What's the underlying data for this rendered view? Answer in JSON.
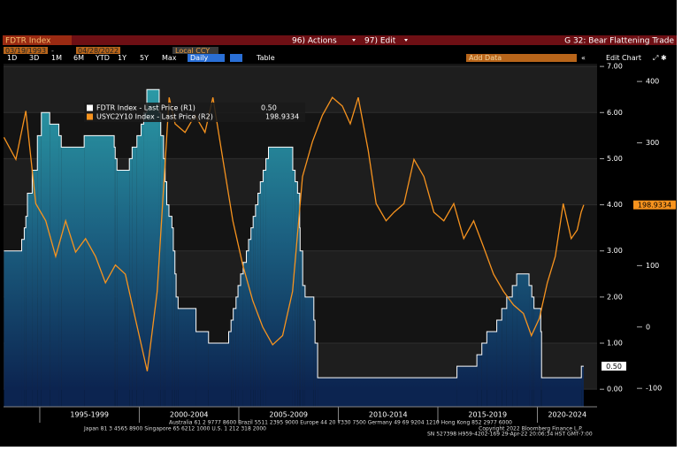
{
  "ui": {
    "security": "FDTR Index",
    "actions": "96) Actions",
    "edit": "97) Edit",
    "chart_name": "G 32: Bear Flattening Trade",
    "start_date": "03/19/1993",
    "end_date": "04/28/2022",
    "currency": "Local CCY",
    "frequency": "Daily",
    "table": "Table",
    "add_data": "Add Data",
    "edit_chart": "Edit Chart",
    "periods": [
      "1D",
      "3D",
      "1M",
      "6M",
      "YTD",
      "1Y",
      "5Y",
      "Max"
    ],
    "footer": [
      "Australia 61 2 9777 8600 Brazil 5511 2395 9000 Europe 44 20 7330 7500 Germany 49 69 9204 1210 Hong Kong 852 2977 6000",
      "Japan 81 3 4565 8900 Singapore 65 6212 1000 U.S. 1 212 318 2000",
      "Copyright 2022 Bloomberg Finance L.P.",
      "SN 527398 H959-4202-169 29-Apr-22 20:06:34 HST GMT-7:00"
    ]
  },
  "chart_data": {
    "type": "line",
    "xlim": [
      1993.18,
      2023.0
    ],
    "xticks": [
      {
        "value": 1995,
        "label": "1995-1999"
      },
      {
        "value": 2000,
        "label": "2000-2004"
      },
      {
        "value": 2005,
        "label": "2005-2009"
      },
      {
        "value": 2010,
        "label": "2010-2014"
      },
      {
        "value": 2015,
        "label": "2015-2019"
      },
      {
        "value": 2020,
        "label": "2020-2024"
      }
    ],
    "ylim": [
      -0.38,
      7.06
    ],
    "yticks": [
      {
        "value": 0,
        "label": "0.00"
      },
      {
        "value": 1,
        "label": "1.00"
      },
      {
        "value": 2,
        "label": "2.00"
      },
      {
        "value": 3,
        "label": "3.00"
      },
      {
        "value": 4,
        "label": "4.00"
      },
      {
        "value": 5,
        "label": "5.00"
      },
      {
        "value": 6,
        "label": "6.00"
      },
      {
        "value": 7,
        "label": "7.00"
      }
    ],
    "y2lim": [
      -130,
      429
    ],
    "y2ticks": [
      -100,
      0,
      100,
      200,
      300,
      400
    ],
    "grid": true,
    "legend": "top-left",
    "series": [
      {
        "name": "FDTR Index - Last Price (R1)",
        "color": "#ffffff",
        "style": "step-area",
        "last_label": "0.50",
        "x": [
          1993.2,
          1994.09,
          1994.22,
          1994.3,
          1994.38,
          1994.62,
          1994.88,
          1995.08,
          1995.5,
          1995.96,
          1996.08,
          1997.23,
          1998.74,
          1998.79,
          1998.88,
          1999.5,
          1999.64,
          1999.88,
          2000.09,
          2000.22,
          2000.38,
          2001.0,
          2001.08,
          2001.22,
          2001.3,
          2001.38,
          2001.49,
          2001.64,
          2001.71,
          2001.79,
          2001.85,
          2001.95,
          2002.85,
          2003.48,
          2004.49,
          2004.61,
          2004.72,
          2004.86,
          2004.96,
          2005.09,
          2005.22,
          2005.38,
          2005.49,
          2005.61,
          2005.72,
          2005.84,
          2005.96,
          2006.08,
          2006.22,
          2006.36,
          2006.49,
          2007.71,
          2007.83,
          2007.95,
          2008.06,
          2008.08,
          2008.21,
          2008.33,
          2008.77,
          2008.83,
          2008.96,
          2015.96,
          2016.96,
          2017.21,
          2017.46,
          2017.96,
          2018.21,
          2018.46,
          2018.74,
          2018.96,
          2019.58,
          2019.72,
          2019.83,
          2020.17,
          2020.21,
          2022.21,
          2022.33
        ],
        "values": [
          3.0,
          3.25,
          3.5,
          3.75,
          4.25,
          4.75,
          5.5,
          6.0,
          5.75,
          5.5,
          5.25,
          5.5,
          5.25,
          5.0,
          4.75,
          5.0,
          5.25,
          5.5,
          5.75,
          6.0,
          6.5,
          6.0,
          5.5,
          5.0,
          4.5,
          4.0,
          3.75,
          3.5,
          3.0,
          2.5,
          2.0,
          1.75,
          1.25,
          1.0,
          1.25,
          1.5,
          1.75,
          2.0,
          2.25,
          2.5,
          2.75,
          3.0,
          3.25,
          3.5,
          3.75,
          4.0,
          4.25,
          4.5,
          4.75,
          5.0,
          5.25,
          4.75,
          4.5,
          4.25,
          3.5,
          3.0,
          2.25,
          2.0,
          1.5,
          1.0,
          0.25,
          0.5,
          0.75,
          1.0,
          1.25,
          1.5,
          1.75,
          2.0,
          2.25,
          2.5,
          2.25,
          2.0,
          1.75,
          1.25,
          0.25,
          0.5,
          0.5
        ]
      },
      {
        "name": "USYC2Y10 Index - Last Price (R2)",
        "color": "#f7931e",
        "axis": "y2",
        "last_label": "198.9334",
        "x": [
          1993.2,
          1993.8,
          1994.3,
          1994.8,
          1995.3,
          1995.8,
          1996.3,
          1996.8,
          1997.3,
          1997.8,
          1998.3,
          1998.8,
          1999.3,
          1999.8,
          2000.4,
          2000.9,
          2001.5,
          2001.8,
          2002.3,
          2002.8,
          2003.3,
          2003.7,
          2004.2,
          2004.7,
          2005.2,
          2005.7,
          2006.2,
          2006.7,
          2007.2,
          2007.7,
          2008.2,
          2008.7,
          2009.2,
          2009.7,
          2010.2,
          2010.6,
          2011.0,
          2011.5,
          2011.9,
          2012.4,
          2012.8,
          2013.3,
          2013.8,
          2014.3,
          2014.8,
          2015.3,
          2015.8,
          2016.3,
          2016.8,
          2017.3,
          2017.8,
          2018.3,
          2018.8,
          2019.3,
          2019.7,
          2020.1,
          2020.5,
          2020.9,
          2021.3,
          2021.7,
          2022.0,
          2022.2,
          2022.33
        ],
        "values": [
          309,
          273,
          352,
          201,
          173,
          115,
          173,
          122,
          144,
          115,
          72,
          101,
          86,
          14,
          -72,
          58,
          374,
          331,
          317,
          345,
          317,
          374,
          273,
          173,
          101,
          43,
          0,
          -29,
          -14,
          58,
          245,
          302,
          345,
          374,
          360,
          331,
          374,
          288,
          201,
          173,
          187,
          201,
          273,
          245,
          187,
          173,
          201,
          144,
          173,
          130,
          86,
          58,
          36,
          22,
          -14,
          14,
          72,
          115,
          201,
          144,
          158,
          187,
          198.9334
        ]
      }
    ]
  }
}
